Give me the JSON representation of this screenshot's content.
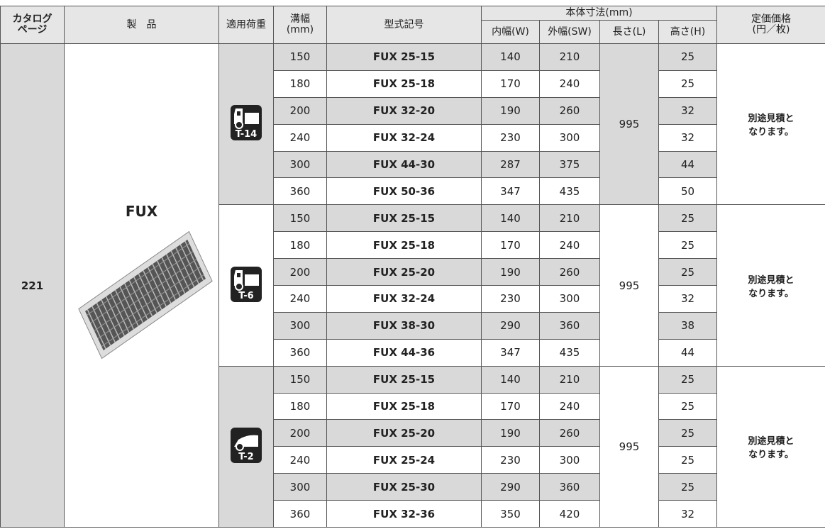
{
  "header": {
    "catalog_page": [
      "カタログ",
      "ページ"
    ],
    "product": "製　品",
    "load": "適用荷重",
    "groove_width": [
      "溝幅",
      "(mm)"
    ],
    "model": "型式記号",
    "body_size": "本体寸法(mm)",
    "inner_width": "内幅(W)",
    "outer_width": "外幅(SW)",
    "length": "長さ(L)",
    "height": "高さ(H)",
    "price": [
      "定価価格",
      "(円／枚)"
    ]
  },
  "product": {
    "page": "221",
    "name": "FUX"
  },
  "groups": [
    {
      "load": "T-14",
      "length": "995",
      "price": [
        "別途見積と",
        "なります。"
      ],
      "rows": [
        [
          "150",
          "FUX 25-15",
          "140",
          "210",
          "25"
        ],
        [
          "180",
          "FUX 25-18",
          "170",
          "240",
          "25"
        ],
        [
          "200",
          "FUX 32-20",
          "190",
          "260",
          "32"
        ],
        [
          "240",
          "FUX 32-24",
          "230",
          "300",
          "32"
        ],
        [
          "300",
          "FUX 44-30",
          "287",
          "375",
          "44"
        ],
        [
          "360",
          "FUX 50-36",
          "347",
          "435",
          "50"
        ]
      ]
    },
    {
      "load": "T-6",
      "length": "995",
      "price": [
        "別途見積と",
        "なります。"
      ],
      "rows": [
        [
          "150",
          "FUX 25-15",
          "140",
          "210",
          "25"
        ],
        [
          "180",
          "FUX 25-18",
          "170",
          "240",
          "25"
        ],
        [
          "200",
          "FUX 25-20",
          "190",
          "260",
          "25"
        ],
        [
          "240",
          "FUX 32-24",
          "230",
          "300",
          "32"
        ],
        [
          "300",
          "FUX 38-30",
          "290",
          "360",
          "38"
        ],
        [
          "360",
          "FUX 44-36",
          "347",
          "435",
          "44"
        ]
      ]
    },
    {
      "load": "T-2",
      "length": "995",
      "price": [
        "別途見積と",
        "なります。"
      ],
      "rows": [
        [
          "150",
          "FUX 25-15",
          "140",
          "210",
          "25"
        ],
        [
          "180",
          "FUX 25-18",
          "170",
          "240",
          "25"
        ],
        [
          "200",
          "FUX 25-20",
          "190",
          "260",
          "25"
        ],
        [
          "240",
          "FUX 25-24",
          "230",
          "300",
          "25"
        ],
        [
          "300",
          "FUX 25-30",
          "290",
          "360",
          "25"
        ],
        [
          "360",
          "FUX 32-36",
          "350",
          "420",
          "32"
        ]
      ]
    }
  ]
}
